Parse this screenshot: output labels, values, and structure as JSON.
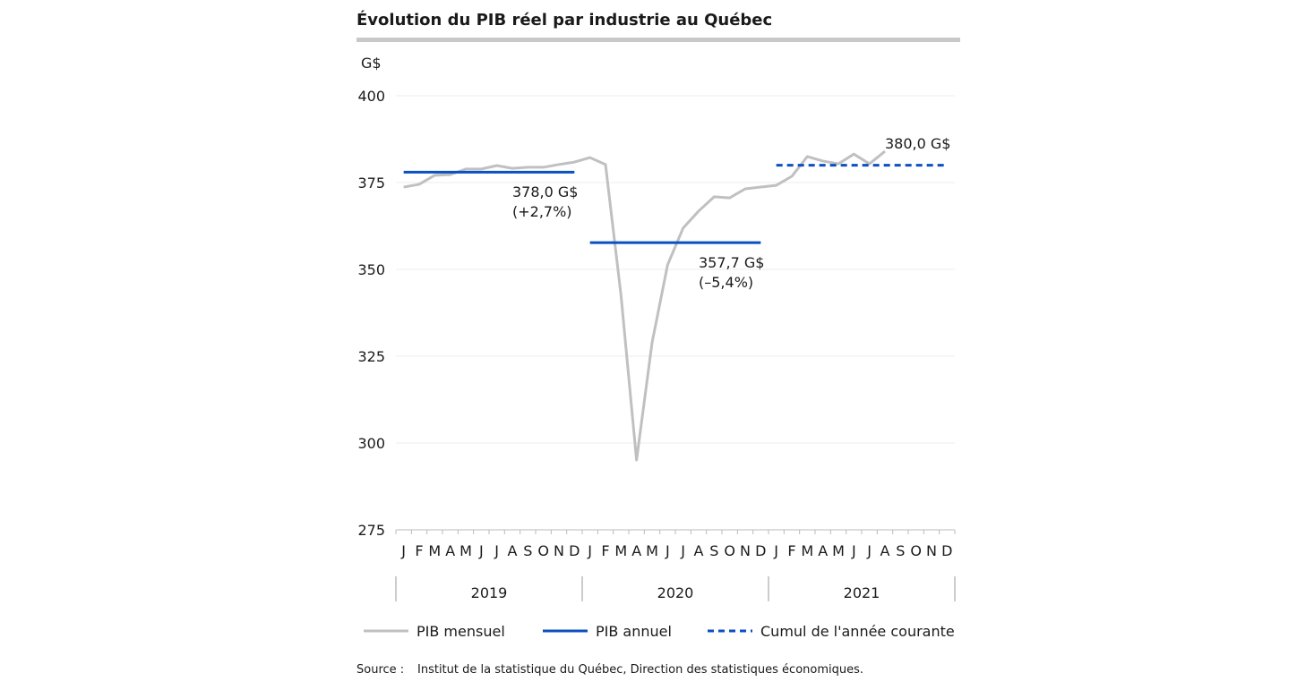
{
  "chart_data": {
    "type": "line",
    "title": "Évolution du PIB réel par industrie au Québec",
    "ylabel": "G$",
    "ylim": [
      275,
      400
    ],
    "yticks": [
      275,
      300,
      325,
      350,
      375,
      400
    ],
    "grid": true,
    "month_labels": [
      "J",
      "F",
      "M",
      "A",
      "M",
      "J",
      "J",
      "A",
      "S",
      "O",
      "N",
      "D"
    ],
    "years": [
      "2019",
      "2020",
      "2021"
    ],
    "series": [
      {
        "name": "PIB mensuel",
        "color": "#c0c0c0",
        "style": "solid",
        "values": [
          373.7,
          374.5,
          377.1,
          377.3,
          378.9,
          378.9,
          379.9,
          379.1,
          379.4,
          379.4,
          380.2,
          380.9,
          382.2,
          380.2,
          342.5,
          295.1,
          328.9,
          351.3,
          361.9,
          366.8,
          370.9,
          370.6,
          373.2,
          373.7,
          374.2,
          376.8,
          382.5,
          381.2,
          380.4,
          383.2,
          380.4,
          384.0
        ]
      },
      {
        "name": "PIB annuel",
        "color": "#0a50c0",
        "style": "solid",
        "segments": [
          {
            "year": "2019",
            "value": 378.0,
            "label": "378,0 G$",
            "change": "(+2,7%)"
          },
          {
            "year": "2020",
            "value": 357.7,
            "label": "357,7 G$",
            "change": "(–5,4%)"
          }
        ]
      },
      {
        "name": "Cumul de l'année courante",
        "color": "#0a50c0",
        "style": "dashed",
        "segments": [
          {
            "year": "2021",
            "value": 380.0,
            "label": "380,0 G$"
          }
        ]
      }
    ],
    "legend_position": "bottom",
    "source_label": "Source :",
    "source_text": "Institut de la statistique du Québec, Direction des statistiques économiques."
  }
}
